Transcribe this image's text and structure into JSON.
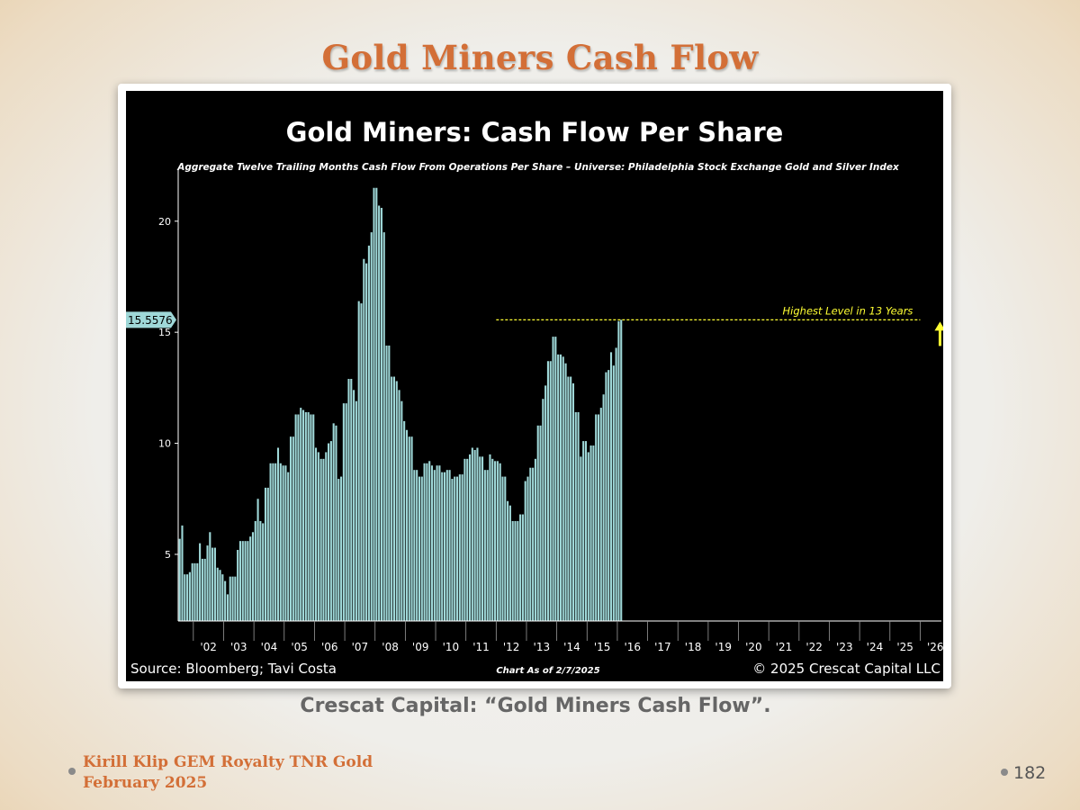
{
  "slide": {
    "title": "Gold Miners Cash Flow",
    "caption": "Crescat Capital: “Gold Miners Cash Flow”.",
    "author_line1": "Kirill Klip GEM Royalty TNR Gold",
    "author_line2": "February 2025",
    "page_number": "182"
  },
  "chart_data": {
    "type": "bar",
    "title": "Gold Miners: Cash Flow Per Share",
    "subtitle": "Aggregate Twelve Trailing Months Cash Flow From Operations Per Share – Universe: Philadelphia Stock Exchange Gold and Silver Index",
    "xlabel": "",
    "ylabel": "",
    "ylim": [
      2,
      22.3
    ],
    "y_ticks": [
      5,
      10,
      15,
      20
    ],
    "x_tick_labels": [
      "'02",
      "'03",
      "'04",
      "'05",
      "'06",
      "'07",
      "'08",
      "'09",
      "'10",
      "'11",
      "'12",
      "'13",
      "'14",
      "'15",
      "'16",
      "'17",
      "'18",
      "'19",
      "'20",
      "'21",
      "'22",
      "'23",
      "'24",
      "'25",
      "'26"
    ],
    "x_range_years": [
      2001.5,
      2026.7
    ],
    "bar_color": "#9fd8d8",
    "series": [
      {
        "name": "",
        "start_year": 2001.55,
        "step_years": 0.0833,
        "values": [
          5.7,
          6.3,
          4.1,
          4.1,
          4.2,
          4.6,
          4.6,
          4.6,
          5.5,
          4.8,
          4.8,
          5.4,
          6.0,
          5.3,
          5.3,
          4.4,
          4.3,
          4.1,
          3.8,
          3.2,
          4.0,
          4.0,
          4.0,
          5.2,
          5.6,
          5.6,
          5.6,
          5.6,
          5.8,
          6.0,
          6.5,
          7.5,
          6.5,
          6.4,
          8.0,
          8.0,
          9.1,
          9.1,
          9.1,
          9.8,
          9.1,
          9.0,
          9.0,
          8.7,
          10.3,
          10.3,
          11.3,
          11.3,
          11.6,
          11.5,
          11.4,
          11.4,
          11.3,
          11.3,
          9.8,
          9.6,
          9.3,
          9.3,
          9.6,
          10.0,
          10.1,
          10.9,
          10.8,
          8.4,
          8.5,
          11.8,
          11.8,
          12.9,
          12.9,
          12.4,
          11.9,
          16.4,
          16.3,
          18.3,
          18.1,
          18.9,
          19.5,
          21.5,
          21.5,
          20.7,
          20.6,
          19.5,
          14.4,
          14.4,
          13.0,
          13.0,
          12.8,
          12.4,
          11.9,
          11.0,
          10.6,
          10.3,
          10.3,
          8.8,
          8.8,
          8.5,
          8.5,
          9.1,
          9.1,
          9.2,
          9.0,
          8.8,
          9.0,
          9.0,
          8.7,
          8.7,
          8.8,
          8.8,
          8.4,
          8.5,
          8.5,
          8.6,
          8.6,
          9.3,
          9.3,
          9.5,
          9.8,
          9.7,
          9.8,
          9.4,
          9.4,
          8.8,
          8.8,
          9.5,
          9.3,
          9.2,
          9.2,
          9.1,
          8.5,
          8.5,
          7.4,
          7.2,
          6.5,
          6.5,
          6.5,
          6.8,
          6.8,
          8.3,
          8.5,
          8.9,
          8.9,
          9.3,
          10.8,
          10.8,
          12.0,
          12.6,
          13.7,
          13.7,
          14.8,
          14.8,
          14.0,
          14.0,
          13.9,
          13.6,
          13.0,
          13.0,
          12.7,
          11.4,
          11.4,
          9.4,
          10.1,
          10.1,
          9.6,
          9.9,
          9.9,
          11.3,
          11.3,
          11.6,
          12.2,
          13.2,
          13.3,
          14.1,
          13.5,
          14.3,
          15.5,
          15.5576
        ]
      }
    ],
    "current_value_label": "15.5576",
    "reference_line": {
      "value": 15.5576,
      "from_year": 2012.0,
      "to_year": 2026.0,
      "style": "dashed",
      "color": "#ffff33"
    },
    "annotation": "Highest Level in 13 Years",
    "annotation_color": "#ffff33",
    "source_text": "Source: Bloomberg; Tavi Costa",
    "as_of_text": "Chart As of 2/7/2025",
    "copyright_text": "© 2025 Crescat Capital LLC"
  }
}
